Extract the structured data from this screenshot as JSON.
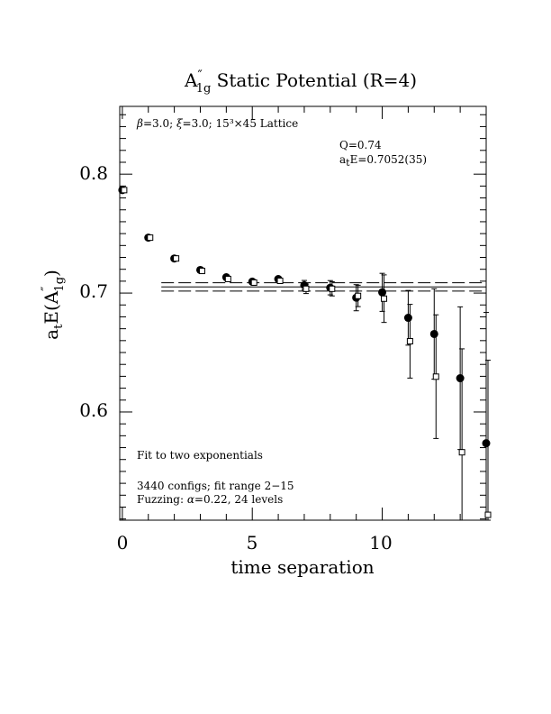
{
  "chart_data": {
    "type": "scatter",
    "title_main": "A",
    "title_prime": "″",
    "title_sub": "1g",
    "title_rest": " Static Potential (R=4)",
    "xlabel": "time separation",
    "ylabel_main": "a",
    "ylabel_sub1": "t",
    "ylabel_mid": "E(A",
    "ylabel_prime": "″",
    "ylabel_sub2": "1g",
    "ylabel_end": ")",
    "xlim": [
      -0.1,
      14.0
    ],
    "ylim": [
      0.509,
      0.857
    ],
    "x_ticks": [
      "0",
      "5",
      "10"
    ],
    "y_ticks": [
      "0.6",
      "0.7",
      "0.8"
    ],
    "annotations": {
      "lattice_beta": "β",
      "lattice_text": "=3.0; ",
      "lattice_xi": "ξ",
      "lattice_text2": "=3.0; 15³×45 Lattice",
      "q": "Q=0.74",
      "energy_a": "a",
      "energy_sub": "t",
      "energy_rest": "E=0.7052(35)",
      "fit_type": "Fit to two exponentials",
      "configs": "3440 configs; fit range 2−15",
      "fuzzing_pre": "Fuzzing: ",
      "fuzzing_alpha": "α",
      "fuzzing_post": "=0.22, 24 levels"
    },
    "fit": {
      "center": 0.7052,
      "err": 0.0035,
      "x_start": 1.5,
      "x_end": 14.0
    },
    "series": [
      {
        "marker": "filled-circle",
        "points": [
          {
            "x": 0,
            "y": 0.7866,
            "err": 0.001
          },
          {
            "x": 1,
            "y": 0.7466,
            "err": 0.001
          },
          {
            "x": 2,
            "y": 0.7291,
            "err": 0.0015
          },
          {
            "x": 3,
            "y": 0.7194,
            "err": 0.0015
          },
          {
            "x": 4,
            "y": 0.7133,
            "err": 0.002
          },
          {
            "x": 5,
            "y": 0.7096,
            "err": 0.002
          },
          {
            "x": 6,
            "y": 0.7118,
            "err": 0.002
          },
          {
            "x": 7,
            "y": 0.7066,
            "err": 0.004
          },
          {
            "x": 8,
            "y": 0.7045,
            "err": 0.006
          },
          {
            "x": 9,
            "y": 0.6961,
            "err": 0.011
          },
          {
            "x": 10,
            "y": 0.7006,
            "err": 0.016
          },
          {
            "x": 11,
            "y": 0.6792,
            "err": 0.023
          },
          {
            "x": 12,
            "y": 0.6656,
            "err": 0.038
          },
          {
            "x": 13,
            "y": 0.6284,
            "err": 0.06
          },
          {
            "x": 14,
            "y": 0.5737,
            "err": 0.11
          }
        ]
      },
      {
        "marker": "open-square",
        "points": [
          {
            "x": 0,
            "y": 0.7866,
            "err": 0.001
          },
          {
            "x": 1,
            "y": 0.7466,
            "err": 0.001
          },
          {
            "x": 2,
            "y": 0.7291,
            "err": 0.0015
          },
          {
            "x": 3,
            "y": 0.7186,
            "err": 0.0015
          },
          {
            "x": 4,
            "y": 0.7118,
            "err": 0.0015
          },
          {
            "x": 5,
            "y": 0.7088,
            "err": 0.002
          },
          {
            "x": 6,
            "y": 0.7103,
            "err": 0.002
          },
          {
            "x": 7,
            "y": 0.7036,
            "err": 0.004
          },
          {
            "x": 8,
            "y": 0.7036,
            "err": 0.006
          },
          {
            "x": 9,
            "y": 0.6976,
            "err": 0.009
          },
          {
            "x": 10,
            "y": 0.6953,
            "err": 0.02
          },
          {
            "x": 11,
            "y": 0.6595,
            "err": 0.031
          },
          {
            "x": 12,
            "y": 0.6297,
            "err": 0.052
          },
          {
            "x": 13,
            "y": 0.5661,
            "err": 0.087
          },
          {
            "x": 14,
            "y": 0.5135,
            "err": 0.13
          }
        ]
      }
    ]
  }
}
